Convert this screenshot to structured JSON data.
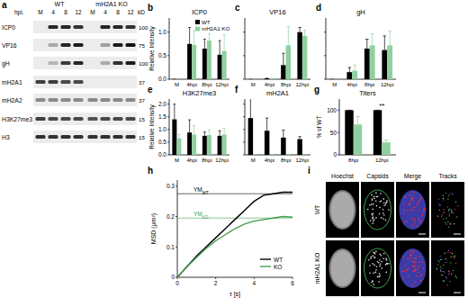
{
  "chart_data": [
    {
      "panel": "b",
      "type": "bar",
      "title": "ICP0",
      "y_label": "Relative Intensity",
      "categories": [
        "M",
        "4hpi",
        "8hpi",
        "12hpi"
      ],
      "series": [
        {
          "name": "WT",
          "color": "#000000",
          "values": [
            0,
            0.75,
            0.65,
            0.52
          ],
          "errors": [
            0,
            0.35,
            0.2,
            0.3
          ]
        },
        {
          "name": "mH2A1 KO",
          "color": "#8fd0a0",
          "values": [
            0,
            0.73,
            0.82,
            0.6
          ],
          "errors": [
            0,
            0.3,
            0.15,
            0.35
          ]
        }
      ],
      "ylim": [
        0,
        1.3
      ],
      "yticks": [
        {
          "value": 0,
          "label": "0.0"
        },
        0.5,
        {
          "value": 1,
          "label": "1.0"
        }
      ],
      "legend": "upper right"
    },
    {
      "panel": "c",
      "type": "bar",
      "title": "VP16",
      "categories": [
        "M",
        "4hpi",
        "8hpi",
        "12hpi"
      ],
      "series": [
        {
          "color": "#000000",
          "values": [
            0,
            0.02,
            0.3,
            1.0
          ],
          "errors": [
            0,
            0,
            0.25,
            0.1
          ]
        },
        {
          "color": "#8fd0a0",
          "values": [
            0,
            0.02,
            0.72,
            0.92
          ],
          "errors": [
            0,
            0,
            0.4,
            0.12
          ]
        }
      ],
      "ylim": [
        0,
        1.3
      ],
      "yticks": [
        0,
        0.5,
        1
      ],
      "tick_labels": "x"
    },
    {
      "panel": "d",
      "type": "bar",
      "title": "gH",
      "categories": [
        "M",
        "4hpi",
        "8hpi",
        "12hpi"
      ],
      "series": [
        {
          "color": "#000000",
          "values": [
            0,
            0.15,
            0.65,
            0.62
          ],
          "errors": [
            0,
            0.1,
            0.2,
            0.3
          ]
        },
        {
          "color": "#8fd0a0",
          "values": [
            0,
            0.18,
            0.72,
            0.72
          ],
          "errors": [
            0,
            0.12,
            0.25,
            0.3
          ]
        }
      ],
      "ylim": [
        0,
        1.3
      ],
      "yticks": [
        0,
        0.5,
        1
      ],
      "tick_labels": "x"
    },
    {
      "panel": "e",
      "type": "bar",
      "title": "H3K27me3",
      "y_label": "Relative Intensity",
      "categories": [
        "M",
        "4hpi",
        "8hpi",
        "12hpi"
      ],
      "series": [
        {
          "color": "#000000",
          "values": [
            1.4,
            0.88,
            0.75,
            0.75
          ],
          "errors": [
            0.6,
            0.5,
            0.15,
            0.2
          ]
        },
        {
          "color": "#8fd0a0",
          "values": [
            0.65,
            0.8,
            0.78,
            0.8
          ],
          "errors": [
            0.15,
            0.35,
            0.2,
            0.25
          ]
        }
      ],
      "ylim": [
        0,
        2.2
      ],
      "yticks": [
        {
          "value": 0,
          "label": "0.0"
        },
        0.5,
        {
          "value": 1,
          "label": "1.0"
        },
        1.5,
        {
          "value": 2,
          "label": "2.0"
        }
      ]
    },
    {
      "panel": "f",
      "type": "bar",
      "title": "mH2A1",
      "categories": [
        "M",
        "4hpi",
        "8hpi",
        "12hpi"
      ],
      "series": [
        {
          "color": "#000000",
          "values": [
            1.45,
            0.95,
            0.68,
            0.62
          ],
          "errors": [
            1.2,
            0.5,
            0.3,
            0.1
          ]
        },
        {
          "color": "#8fd0a0",
          "values": [
            0.02,
            0.02,
            0.02,
            0.02
          ],
          "errors": [
            0,
            0,
            0,
            0
          ]
        }
      ],
      "ylim": [
        0,
        2.2
      ],
      "yticks": [
        0,
        0.5,
        1,
        1.5,
        2
      ],
      "tick_labels": "x"
    },
    {
      "panel": "g",
      "type": "bar",
      "title": "Titers",
      "y_label": "% of WT",
      "categories": [
        "8hpi",
        "12hpi"
      ],
      "series": [
        {
          "color": "#000000",
          "values": [
            100,
            100
          ],
          "errors": [
            0,
            0
          ]
        },
        {
          "color": "#8fd0a0",
          "values": [
            68,
            28
          ],
          "errors": [
            18,
            5
          ]
        }
      ],
      "ylim": [
        0,
        125
      ],
      "yticks": [
        0,
        50,
        100
      ],
      "annotations": [
        {
          "text": "**",
          "category": "12hpi"
        }
      ]
    },
    {
      "panel": "h",
      "type": "line",
      "x_label": "τ [s]",
      "y_label": "MSD (μm²)",
      "x": [
        0,
        0.5,
        1,
        1.5,
        2,
        2.5,
        3,
        3.5,
        4,
        4.5,
        5,
        5.5,
        6
      ],
      "series": [
        {
          "name": "WT",
          "color": "#000000",
          "values": [
            0,
            0.035,
            0.07,
            0.1,
            0.13,
            0.16,
            0.19,
            0.22,
            0.25,
            0.27,
            0.275,
            0.28,
            0.28
          ]
        },
        {
          "name": "KO",
          "color": "#3f9f4f",
          "values": [
            0,
            0.035,
            0.065,
            0.095,
            0.12,
            0.14,
            0.16,
            0.175,
            0.185,
            0.19,
            0.195,
            0.2,
            0.198
          ]
        }
      ],
      "xlim": [
        0,
        6
      ],
      "ylim": [
        0,
        0.32
      ],
      "xticks": [
        0,
        2,
        4,
        6
      ],
      "yticks": [
        0,
        0.1,
        0.2,
        0.3
      ],
      "legend": "lower right",
      "annotations": [
        {
          "text": "YM",
          "sub": "WT",
          "y": 0.275,
          "color": "#000000"
        },
        {
          "text": "YM",
          "sub": "KO",
          "y": 0.195,
          "color": "#3f9f4f"
        }
      ]
    }
  ],
  "blot": {
    "panel": "a",
    "hpi_label": "hpi.",
    "kd_label": "kD",
    "groups": [
      {
        "name": "WT",
        "lanes": [
          "M",
          "4",
          "8",
          "12"
        ]
      },
      {
        "name": "mH2A1 KO",
        "lanes": [
          "M",
          "4",
          "8",
          "12"
        ]
      }
    ],
    "rows": [
      {
        "label": "ICP0",
        "kd": 100
      },
      {
        "label": "VP16",
        "kd": 75
      },
      {
        "label": "gH",
        "kd": 100
      },
      {
        "label": "mH2A1",
        "kd": 37
      },
      {
        "label": "mH2A2",
        "kd": 37
      },
      {
        "label": "H3K27me3",
        "kd": 15
      },
      {
        "label": "H3",
        "kd": 15
      }
    ]
  },
  "images": {
    "panel": "i",
    "columns": [
      "Hoechst",
      "Capsids",
      "Merge",
      "Tracks"
    ],
    "rows": [
      "WT",
      "mH2A1 KO"
    ]
  }
}
